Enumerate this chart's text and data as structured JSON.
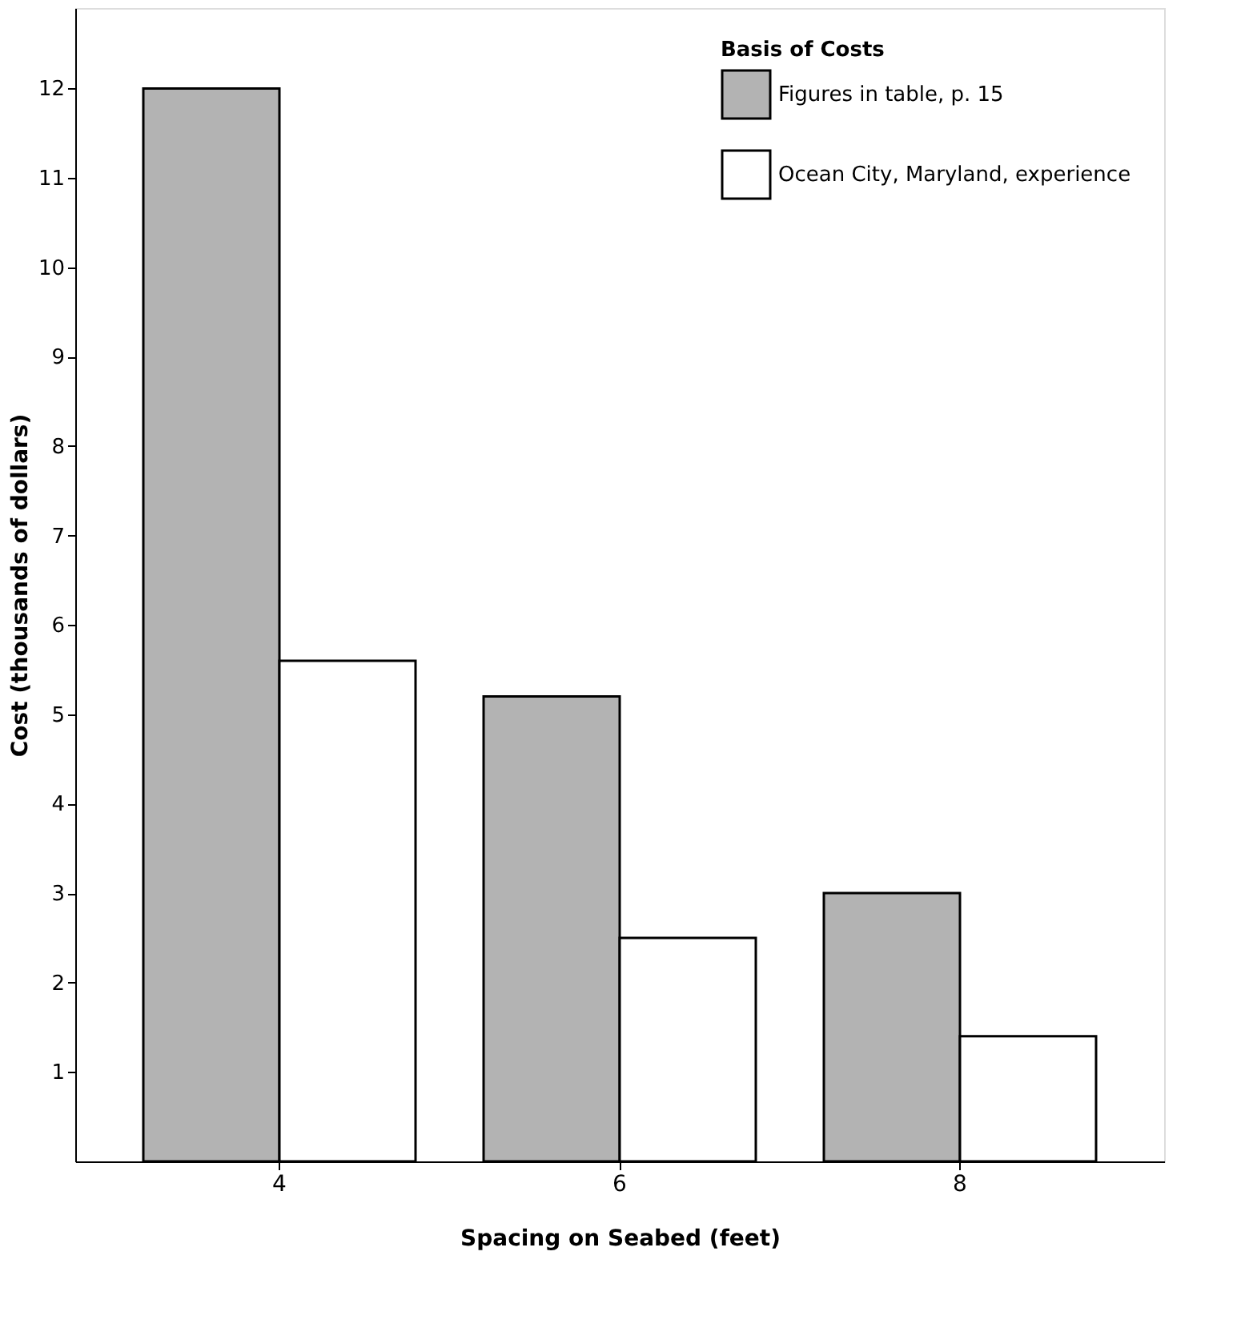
{
  "chart_data": {
    "type": "bar",
    "xlabel": "Spacing on Seabed (feet)",
    "ylabel": "Cost (thousands of dollars)",
    "legend_title": "Basis of Costs",
    "categories": [
      "4",
      "6",
      "8"
    ],
    "series": [
      {
        "name": "Figures in table, p. 15",
        "color": "#b3b3b3",
        "values": [
          12.0,
          5.2,
          3.0
        ]
      },
      {
        "name": "Ocean City, Maryland, experience",
        "color": "#ffffff",
        "values": [
          5.6,
          2.5,
          1.4
        ]
      }
    ],
    "ylim": [
      0,
      12.9
    ],
    "yticks": [
      1,
      2,
      3,
      4,
      5,
      6,
      7,
      8,
      9,
      10,
      11,
      12
    ],
    "grid": false,
    "legend": "top right"
  }
}
